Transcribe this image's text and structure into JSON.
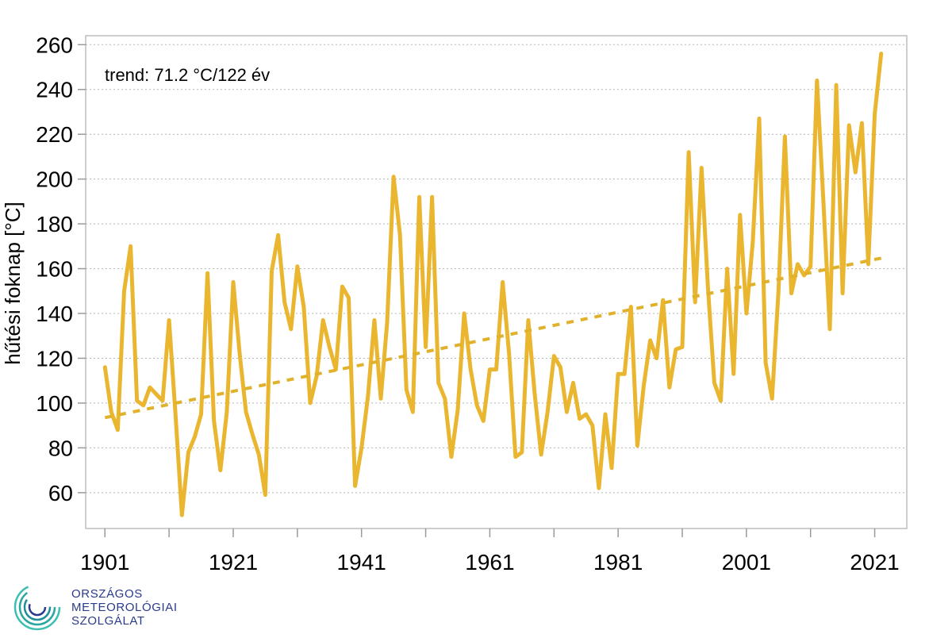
{
  "chart_data": {
    "type": "line",
    "title": "",
    "xlabel": "",
    "ylabel": "hűtési foknap [°C]",
    "annotation": "trend: 71.2 °C/122 év",
    "xlim": [
      1898,
      2026
    ],
    "ylim": [
      44,
      264
    ],
    "x_ticks": [
      1901,
      1921,
      1941,
      1961,
      1981,
      2001,
      2021
    ],
    "x_minor_ticks": [
      1911,
      1931,
      1951,
      1971,
      1991,
      2011
    ],
    "y_ticks": [
      60,
      80,
      100,
      120,
      140,
      160,
      180,
      200,
      220,
      240,
      260
    ],
    "grid": "horizontal dotted",
    "legend": "none",
    "series": [
      {
        "color": "#eab630",
        "style": "solid",
        "x": [
          1901,
          1902,
          1903,
          1904,
          1905,
          1906,
          1907,
          1908,
          1909,
          1910,
          1911,
          1912,
          1913,
          1914,
          1915,
          1916,
          1917,
          1918,
          1919,
          1920,
          1921,
          1922,
          1923,
          1924,
          1925,
          1926,
          1927,
          1928,
          1929,
          1930,
          1931,
          1932,
          1933,
          1934,
          1935,
          1936,
          1937,
          1938,
          1939,
          1940,
          1941,
          1942,
          1943,
          1944,
          1945,
          1946,
          1947,
          1948,
          1949,
          1950,
          1951,
          1952,
          1953,
          1954,
          1955,
          1956,
          1957,
          1958,
          1959,
          1960,
          1961,
          1962,
          1963,
          1964,
          1965,
          1966,
          1967,
          1968,
          1969,
          1970,
          1971,
          1972,
          1973,
          1974,
          1975,
          1976,
          1977,
          1978,
          1979,
          1980,
          1981,
          1982,
          1983,
          1984,
          1985,
          1986,
          1987,
          1988,
          1989,
          1990,
          1991,
          1992,
          1993,
          1994,
          1995,
          1996,
          1997,
          1998,
          1999,
          2000,
          2001,
          2002,
          2003,
          2004,
          2005,
          2006,
          2007,
          2008,
          2009,
          2010,
          2011,
          2012,
          2013,
          2014,
          2015,
          2016,
          2017,
          2018,
          2019,
          2020,
          2021,
          2022
        ],
        "y": [
          116,
          96,
          88,
          150,
          170,
          101,
          99,
          107,
          104,
          101,
          137,
          95,
          50,
          78,
          85,
          95,
          158,
          92,
          70,
          96,
          154,
          122,
          96,
          86,
          77,
          59,
          159,
          175,
          145,
          133,
          161,
          143,
          100,
          112,
          137,
          125,
          115,
          152,
          147,
          63,
          80,
          103,
          137,
          102,
          136,
          201,
          175,
          106,
          96,
          192,
          125,
          192,
          109,
          102,
          76,
          97,
          140,
          115,
          99,
          92,
          115,
          115,
          154,
          122,
          76,
          78,
          137,
          104,
          77,
          96,
          121,
          116,
          96,
          109,
          93,
          95,
          90,
          62,
          95,
          71,
          113,
          113,
          143,
          81,
          108,
          128,
          120,
          146,
          107,
          124,
          125,
          212,
          145,
          205,
          152,
          109,
          101,
          160,
          113,
          184,
          140,
          172,
          227,
          118,
          102,
          150,
          219,
          149,
          162,
          157,
          161,
          244,
          190,
          133,
          242,
          149,
          224,
          203,
          225,
          162,
          229,
          256
        ]
      },
      {
        "name": "trend",
        "color": "#e0b22c",
        "style": "dashed",
        "x": [
          1901,
          2022
        ],
        "y": [
          93.5,
          164.7
        ]
      }
    ]
  },
  "logo": {
    "text_lines": [
      "ORSZÁGOS",
      "METEOROLÓGIAI",
      "SZOLGÁLAT"
    ],
    "color": "#2a3a8c",
    "accent": "#3bbfb0"
  }
}
